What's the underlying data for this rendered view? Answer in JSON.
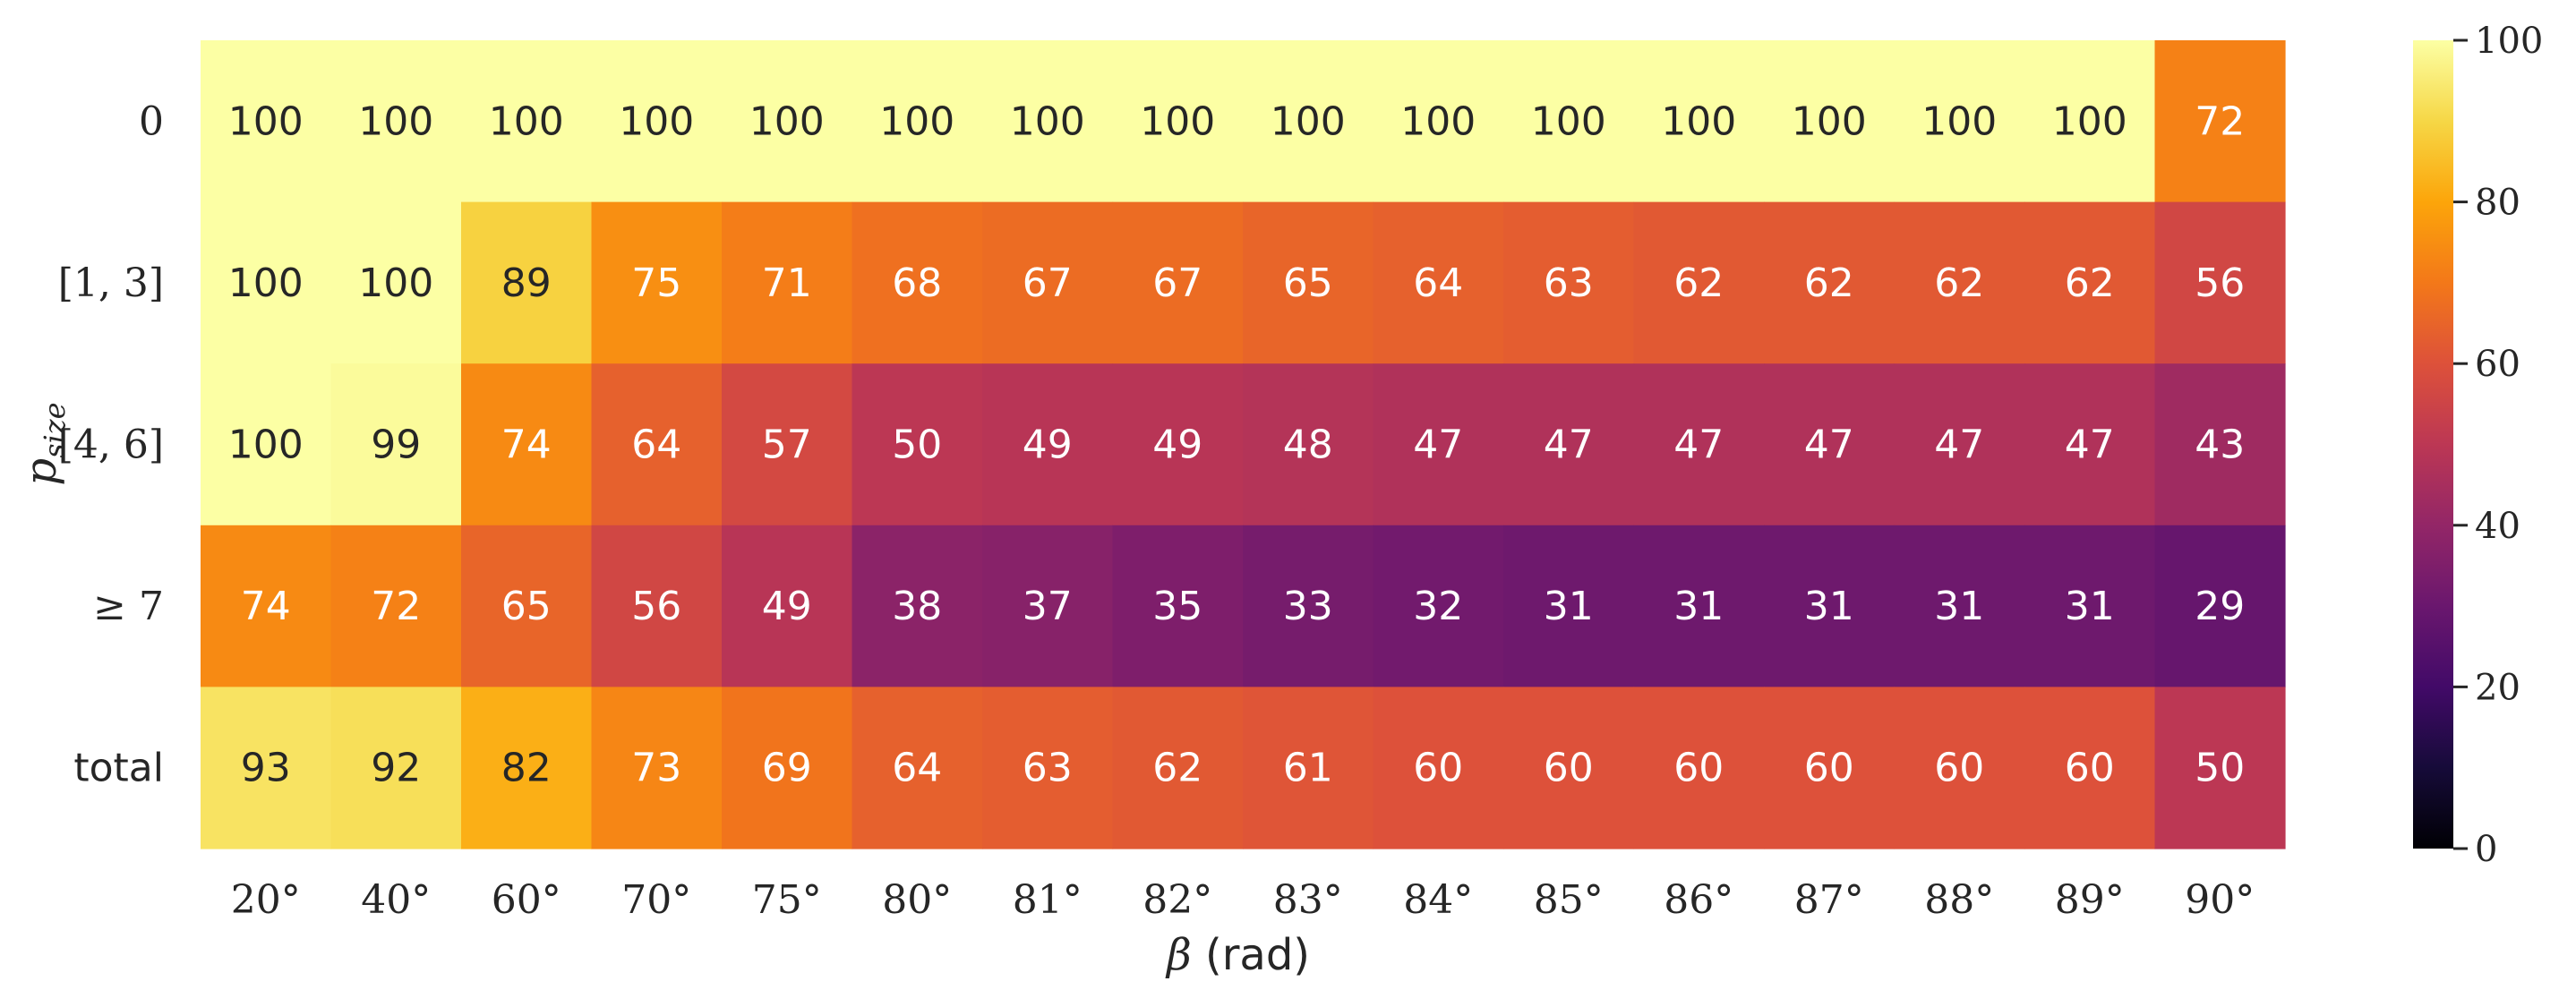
{
  "chart_data": {
    "type": "heatmap",
    "colormap": "inferno",
    "x_categories": [
      "20°",
      "40°",
      "60°",
      "70°",
      "75°",
      "80°",
      "81°",
      "82°",
      "83°",
      "84°",
      "85°",
      "86°",
      "87°",
      "88°",
      "89°",
      "90°"
    ],
    "y_categories": [
      "0",
      "[1, 3]",
      "[4, 6]",
      "≥ 7",
      "total"
    ],
    "xlabel_symbol": "β",
    "xlabel_unit": "(rad)",
    "ylabel_main": "p",
    "ylabel_sub": "size",
    "values": [
      [
        100,
        100,
        100,
        100,
        100,
        100,
        100,
        100,
        100,
        100,
        100,
        100,
        100,
        100,
        100,
        72
      ],
      [
        100,
        100,
        89,
        75,
        71,
        68,
        67,
        67,
        65,
        64,
        63,
        62,
        62,
        62,
        62,
        56
      ],
      [
        100,
        99,
        74,
        64,
        57,
        50,
        49,
        49,
        48,
        47,
        47,
        47,
        47,
        47,
        47,
        43
      ],
      [
        74,
        72,
        65,
        56,
        49,
        38,
        37,
        35,
        33,
        32,
        31,
        31,
        31,
        31,
        31,
        29
      ],
      [
        93,
        92,
        82,
        73,
        69,
        64,
        63,
        62,
        61,
        60,
        60,
        60,
        60,
        60,
        60,
        50
      ]
    ],
    "colorbar": {
      "range": [
        0,
        100
      ],
      "ticks": [
        "0",
        "20",
        "40",
        "60",
        "80",
        "100"
      ]
    }
  }
}
